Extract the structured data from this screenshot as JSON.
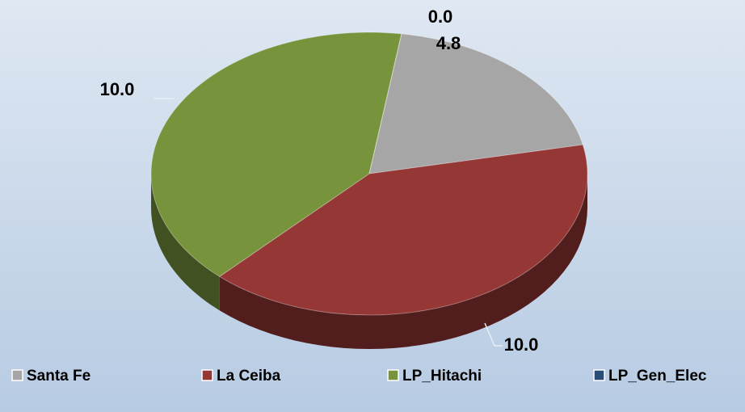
{
  "chart_data": {
    "type": "pie",
    "categories": [
      "Santa Fe",
      "La Ceiba",
      "LP_Hitachi",
      "LP_Gen_Elec"
    ],
    "values": [
      4.8,
      10.0,
      10.0,
      0.0
    ],
    "value_labels": [
      "4.8",
      "10.0",
      "10.0",
      "0.0"
    ],
    "colors": [
      "#a6a6a6",
      "#953735",
      "#77933c",
      "#2c4d75"
    ],
    "legend": "bottom"
  }
}
